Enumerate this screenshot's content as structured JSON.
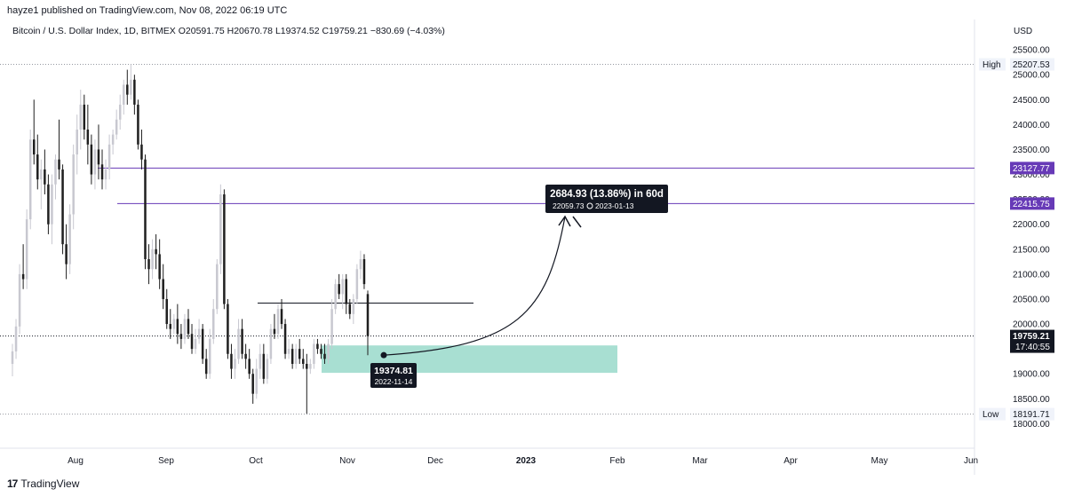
{
  "header": {
    "published": "hayze1 published on TradingView.com, Nov 08, 2022 06:19 UTC"
  },
  "legend": {
    "symbol": "Bitcoin / U.S. Dollar Index, 1D, BITMEX",
    "open": "O20591.75",
    "high": "H20670.78",
    "low": "L19374.52",
    "close": "C19759.21",
    "change": "−830.69 (−4.03%)"
  },
  "footer": {
    "brand": "TradingView",
    "logo": "17"
  },
  "chart_data": {
    "type": "candlestick",
    "currency": "USD",
    "yticks": [
      "25500.00",
      "25000.00",
      "24500.00",
      "24000.00",
      "23500.00",
      "23000.00",
      "22500.00",
      "22000.00",
      "21500.00",
      "21000.00",
      "20500.00",
      "20000.00",
      "19500.00",
      "19000.00",
      "18500.00",
      "18000.00"
    ],
    "xticks": [
      "Aug",
      "Sep",
      "Oct",
      "Nov",
      "Dec",
      "2023",
      "Feb",
      "Mar",
      "Apr",
      "May",
      "Jun"
    ],
    "ylim": [
      17900,
      25650
    ],
    "high_label": {
      "text": "High",
      "value": "25207.53"
    },
    "low_label": {
      "text": "Low",
      "value": "18191.71"
    },
    "current_price": {
      "value": "19759.21",
      "countdown": "17:40:55"
    },
    "hlines": [
      {
        "value": "23127.77",
        "color": "#673ab7"
      },
      {
        "value": "22415.75",
        "color": "#673ab7"
      }
    ],
    "resistance_line": {
      "value": 20420
    },
    "zone": {
      "y_top": 19570,
      "y_bottom": 19020,
      "color": "#a3ddd0"
    },
    "annotation_low": {
      "price": "19374.81",
      "date": "2022-11-14"
    },
    "annotation_target": {
      "title": "2684.93 (13.86%) in 60d",
      "subtitle": "22059.73",
      "date": "2023-01-13"
    },
    "colors": {
      "up": "#c8c8d0",
      "down": "#1f1f1f",
      "purple": "#673ab7",
      "zone": "#a3ddd0"
    },
    "candles": [
      [
        19200,
        19600,
        18950,
        19450
      ],
      [
        19450,
        20100,
        19300,
        19950
      ],
      [
        19950,
        21200,
        19800,
        21000
      ],
      [
        21000,
        21600,
        20700,
        20900
      ],
      [
        20900,
        22300,
        20700,
        22100
      ],
      [
        22100,
        23900,
        21900,
        23700
      ],
      [
        23700,
        24500,
        23200,
        23400
      ],
      [
        23400,
        23800,
        22700,
        22900
      ],
      [
        22900,
        23300,
        22300,
        23100
      ],
      [
        23100,
        23500,
        22600,
        22800
      ],
      [
        22800,
        23000,
        21800,
        22000
      ],
      [
        22000,
        23000,
        21600,
        22800
      ],
      [
        22800,
        23400,
        22500,
        23300
      ],
      [
        23300,
        24100,
        22900,
        23100
      ],
      [
        23100,
        23200,
        21400,
        21600
      ],
      [
        21600,
        22000,
        20900,
        21200
      ],
      [
        21200,
        22400,
        21000,
        22200
      ],
      [
        22200,
        23600,
        21900,
        23400
      ],
      [
        23400,
        24200,
        23000,
        23900
      ],
      [
        23900,
        24700,
        23500,
        24400
      ],
      [
        24400,
        24600,
        23700,
        23900
      ],
      [
        23900,
        24400,
        23200,
        23600
      ],
      [
        23600,
        23800,
        22800,
        23000
      ],
      [
        23000,
        23700,
        22700,
        23500
      ],
      [
        23500,
        24000,
        22900,
        23200
      ],
      [
        23200,
        23500,
        22700,
        22900
      ],
      [
        22900,
        23300,
        22700,
        23100
      ],
      [
        23100,
        23800,
        22900,
        23600
      ],
      [
        23600,
        23900,
        23400,
        23800
      ],
      [
        23800,
        24300,
        23700,
        24100
      ],
      [
        24100,
        24600,
        23900,
        24400
      ],
      [
        24400,
        24900,
        24200,
        24800
      ],
      [
        24800,
        25100,
        24400,
        24600
      ],
      [
        24600,
        25207,
        24500,
        24900
      ],
      [
        24900,
        25000,
        24200,
        24400
      ],
      [
        24400,
        24500,
        23500,
        23600
      ],
      [
        23600,
        23900,
        23100,
        23300
      ],
      [
        23300,
        23400,
        21100,
        21300
      ],
      [
        21300,
        21600,
        20800,
        21100
      ],
      [
        21100,
        21700,
        20900,
        21500
      ],
      [
        21500,
        21800,
        21100,
        21400
      ],
      [
        21400,
        21700,
        20700,
        20900
      ],
      [
        20900,
        21200,
        20300,
        20500
      ],
      [
        20500,
        20700,
        19900,
        20000
      ],
      [
        20000,
        20300,
        19700,
        19900
      ],
      [
        19900,
        20200,
        19800,
        20100
      ],
      [
        20100,
        20400,
        19600,
        19800
      ],
      [
        19800,
        20000,
        19500,
        19700
      ],
      [
        19700,
        20200,
        19600,
        20100
      ],
      [
        20100,
        20300,
        19700,
        19800
      ],
      [
        19800,
        20000,
        19400,
        19500
      ],
      [
        19500,
        19900,
        19400,
        19700
      ],
      [
        19700,
        20100,
        19600,
        19900
      ],
      [
        19900,
        20000,
        19200,
        19300
      ],
      [
        19300,
        19500,
        18900,
        19000
      ],
      [
        19000,
        19900,
        18900,
        19700
      ],
      [
        19700,
        20500,
        19600,
        20300
      ],
      [
        20300,
        21300,
        20200,
        21200
      ],
      [
        21200,
        22800,
        21000,
        22600
      ],
      [
        22600,
        22700,
        20300,
        20400
      ],
      [
        20400,
        20500,
        19300,
        19400
      ],
      [
        19400,
        19600,
        18900,
        19100
      ],
      [
        19100,
        19500,
        18900,
        19300
      ],
      [
        19300,
        20100,
        19200,
        19900
      ],
      [
        19900,
        20100,
        19300,
        19400
      ],
      [
        19400,
        19600,
        19100,
        19300
      ],
      [
        19300,
        19500,
        18900,
        19000
      ],
      [
        19000,
        19100,
        18400,
        18600
      ],
      [
        18600,
        19300,
        18500,
        19100
      ],
      [
        19100,
        19600,
        18900,
        19400
      ],
      [
        19400,
        19600,
        18800,
        18900
      ],
      [
        18900,
        19400,
        18800,
        19300
      ],
      [
        19300,
        20000,
        19200,
        19900
      ],
      [
        19900,
        20200,
        19700,
        19800
      ],
      [
        19800,
        20400,
        19700,
        20300
      ],
      [
        20300,
        20500,
        19900,
        20000
      ],
      [
        20000,
        20100,
        19300,
        19400
      ],
      [
        19400,
        19700,
        19300,
        19500
      ],
      [
        19500,
        19600,
        19100,
        19200
      ],
      [
        19200,
        19600,
        19100,
        19500
      ],
      [
        19500,
        19700,
        19200,
        19300
      ],
      [
        19300,
        19500,
        19100,
        19200
      ],
      [
        19200,
        19400,
        18200,
        19100
      ],
      [
        19100,
        19300,
        19000,
        19200
      ],
      [
        19200,
        19700,
        19100,
        19600
      ],
      [
        19600,
        19700,
        19400,
        19500
      ],
      [
        19500,
        19600,
        19300,
        19400
      ],
      [
        19400,
        19600,
        19200,
        19300
      ],
      [
        19300,
        19700,
        19200,
        19600
      ],
      [
        19600,
        20500,
        19500,
        20300
      ],
      [
        20300,
        20900,
        20200,
        20800
      ],
      [
        20800,
        21000,
        20500,
        20600
      ],
      [
        20600,
        21000,
        20300,
        20900
      ],
      [
        20900,
        21000,
        20200,
        20400
      ],
      [
        20400,
        20500,
        20100,
        20200
      ],
      [
        20200,
        20600,
        20000,
        20500
      ],
      [
        20500,
        21200,
        20400,
        21100
      ],
      [
        21100,
        21470,
        20900,
        21300
      ],
      [
        21300,
        21400,
        20700,
        20800
      ],
      [
        20600,
        20670,
        19374,
        19759
      ]
    ]
  }
}
